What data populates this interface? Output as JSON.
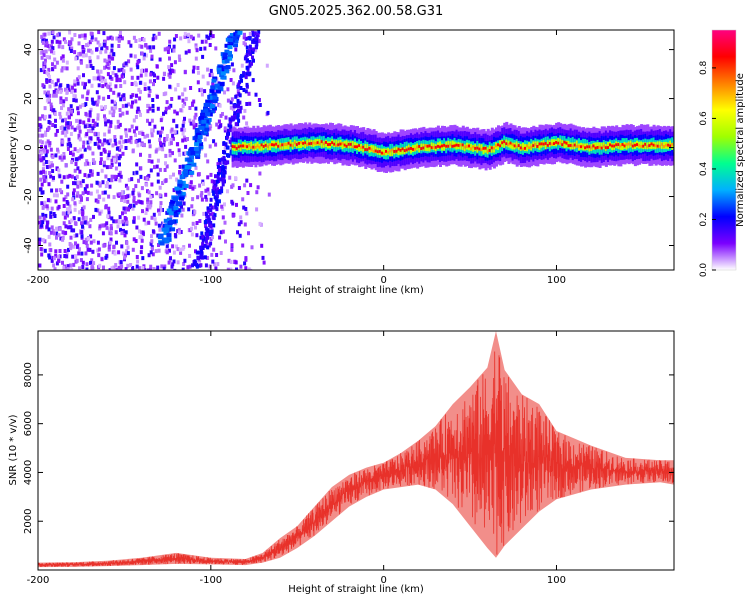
{
  "figure": {
    "title": "GN05.2025.362.00.58.G31"
  },
  "chart_data": [
    {
      "type": "heatmap",
      "name": "spectrogram",
      "title": "GN05.2025.362.00.58.G31",
      "xlabel": "Height of straight line (km)",
      "ylabel": "Frequency (Hz)",
      "xlim": [
        -200,
        168
      ],
      "ylim": [
        -50,
        48
      ],
      "xticks": [
        -200,
        -100,
        0,
        100
      ],
      "yticks": [
        -40,
        -20,
        0,
        20,
        40
      ],
      "features": {
        "scatter_region_x": [
          -200,
          -60
        ],
        "diagonal_streak": {
          "x_start": -130,
          "y_start": -40,
          "x_end": -87,
          "y_end": 48
        },
        "secondary_streak": {
          "x_start": -108,
          "y_start": -48,
          "x_end": -75,
          "y_end": 48
        },
        "tone_track": [
          [
            -88,
            0
          ],
          [
            -60,
            1
          ],
          [
            -40,
            2
          ],
          [
            -20,
            1
          ],
          [
            0,
            -2
          ],
          [
            20,
            0
          ],
          [
            40,
            1
          ],
          [
            60,
            -1
          ],
          [
            70,
            2
          ],
          [
            80,
            0
          ],
          [
            100,
            2
          ],
          [
            120,
            0
          ],
          [
            140,
            1
          ],
          [
            168,
            1
          ]
        ]
      },
      "colorbar": {
        "label": "Normalized spectral amplitude",
        "range": [
          0,
          0.95
        ],
        "ticks": [
          0.0,
          0.2,
          0.4,
          0.6,
          0.8
        ],
        "tick_labels": [
          "0.0",
          "0.2",
          "0.4",
          "0.6",
          "0.8"
        ],
        "colors": [
          "#ffffff",
          "#7a00ff",
          "#0000ff",
          "#00b0ff",
          "#00ff90",
          "#a0ff00",
          "#ffff00",
          "#ff8000",
          "#ff0000",
          "#ff0080"
        ]
      }
    },
    {
      "type": "line",
      "name": "snr",
      "xlabel": "Height of straight line (km)",
      "ylabel": "SNR (10 * v/v)",
      "xlim": [
        -200,
        168
      ],
      "ylim": [
        0,
        9800
      ],
      "xticks": [
        -200,
        -100,
        0,
        100
      ],
      "yticks": [
        2000,
        4000,
        6000,
        8000
      ],
      "color": "#e8312a",
      "series": [
        {
          "name": "SNR",
          "x": [
            -200,
            -180,
            -160,
            -140,
            -120,
            -100,
            -80,
            -70,
            -60,
            -50,
            -40,
            -30,
            -20,
            -10,
            0,
            10,
            20,
            30,
            40,
            50,
            60,
            65,
            70,
            80,
            90,
            100,
            110,
            120,
            140,
            160,
            168
          ],
          "upper": [
            300,
            320,
            380,
            500,
            700,
            500,
            450,
            700,
            1300,
            1800,
            2600,
            3400,
            3900,
            4200,
            4400,
            4800,
            5300,
            5900,
            6800,
            7500,
            8300,
            9800,
            8200,
            7200,
            6800,
            5700,
            5400,
            5100,
            4600,
            4500,
            4500
          ],
          "lower": [
            120,
            130,
            160,
            200,
            250,
            230,
            200,
            300,
            500,
            900,
            1400,
            2000,
            2600,
            3000,
            3300,
            3400,
            3500,
            3300,
            2700,
            1800,
            900,
            500,
            1000,
            1700,
            2400,
            2900,
            3100,
            3300,
            3500,
            3600,
            3500
          ]
        }
      ]
    }
  ]
}
